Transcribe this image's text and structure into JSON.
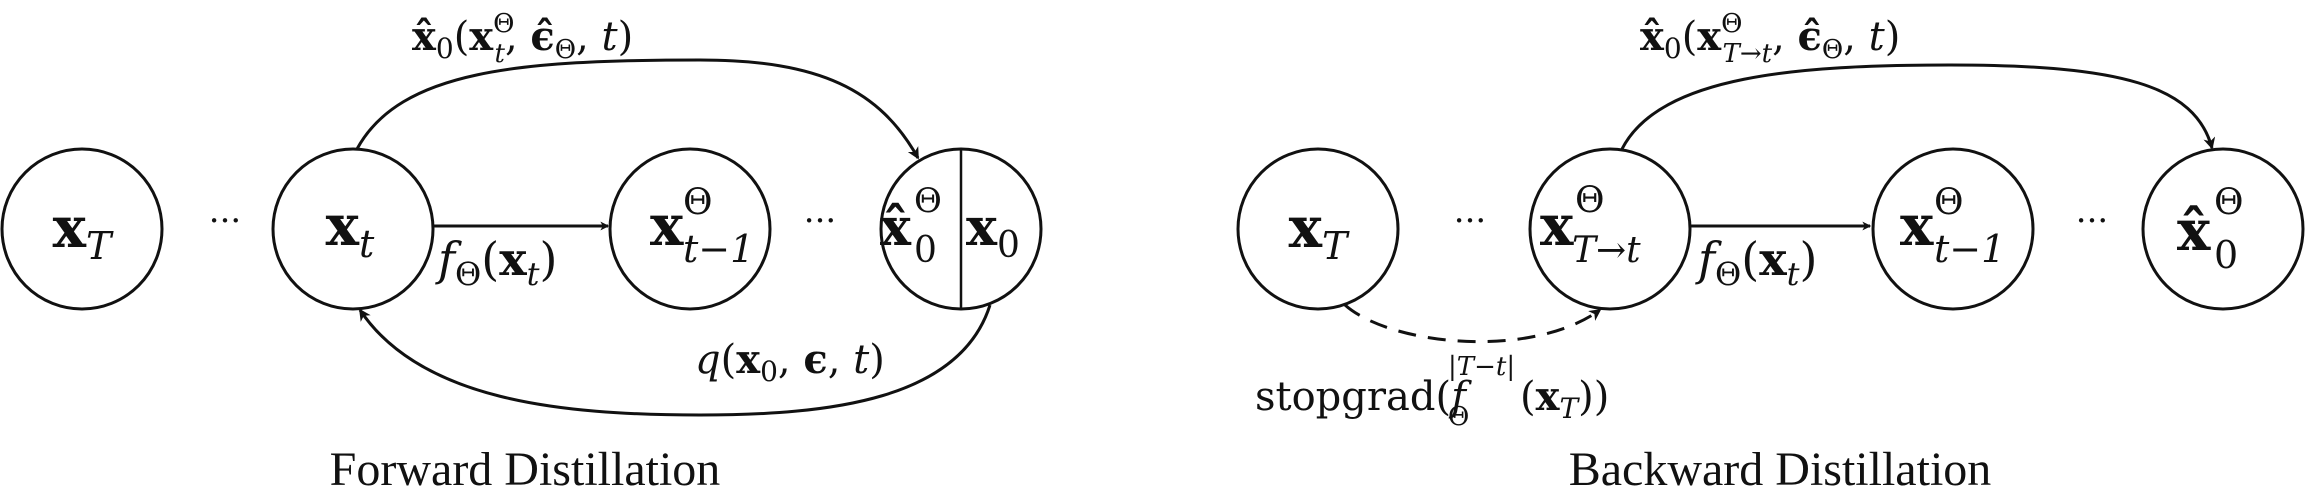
{
  "forward": {
    "caption": "Forward Distillation",
    "nodes": {
      "xT": {
        "base": "x",
        "sub": "T"
      },
      "xt": {
        "base": "x",
        "sub": "t"
      },
      "x_tm1": {
        "base": "x",
        "sup": "Θ",
        "sub": "t−1"
      },
      "x0hat": {
        "base": "x̂",
        "sup": "Θ",
        "sub": "0"
      },
      "x0": {
        "base": "x",
        "sub": "0"
      }
    },
    "ellipsis_1": "···",
    "ellipsis_2": "···",
    "edges": {
      "top_curve": {
        "a": "x̂",
        "b": "0",
        "c": "(",
        "d": "x",
        "e": "Θ",
        "f": "t",
        "g": ", ",
        "h": "ϵ̂",
        "i": "Θ",
        "j": ", ",
        "k": "t",
        "l": ")"
      },
      "straight": {
        "a": "f",
        "b": "Θ",
        "c": "(",
        "d": "x",
        "e": "t",
        "f": ")"
      },
      "bottom_curve": {
        "a": "q",
        "b": "(",
        "c": "x",
        "d": "0",
        "e": ", ",
        "f": "ϵ",
        "g": ", ",
        "h": "t",
        "i": ")"
      }
    }
  },
  "backward": {
    "caption": "Backward Distillation",
    "nodes": {
      "xT": {
        "base": "x",
        "sub": "T"
      },
      "xTt": {
        "base": "x",
        "sup": "Θ",
        "sub": "T→t"
      },
      "x_tm1": {
        "base": "x",
        "sup": "Θ",
        "sub": "t−1"
      },
      "x0hat": {
        "base": "x̂",
        "sup": "Θ",
        "sub": "0"
      }
    },
    "ellipsis_1": "···",
    "ellipsis_2": "···",
    "edges": {
      "top_curve": {
        "a": "x̂",
        "b": "0",
        "c": "(",
        "d": "x",
        "e": "Θ",
        "f": "T→t",
        "g": ", ",
        "h": "ϵ̂",
        "i": "Θ",
        "j": ", ",
        "k": "t",
        "l": ")"
      },
      "straight": {
        "a": "f",
        "b": "Θ",
        "c": "(",
        "d": "x",
        "e": "t",
        "f": ")"
      },
      "dashed_curve": {
        "a": "stopgrad(",
        "b": "f",
        "c": "|T−t|",
        "d": "Θ",
        "e": "(",
        "f": "x",
        "g": "T",
        "h": "))"
      }
    }
  }
}
